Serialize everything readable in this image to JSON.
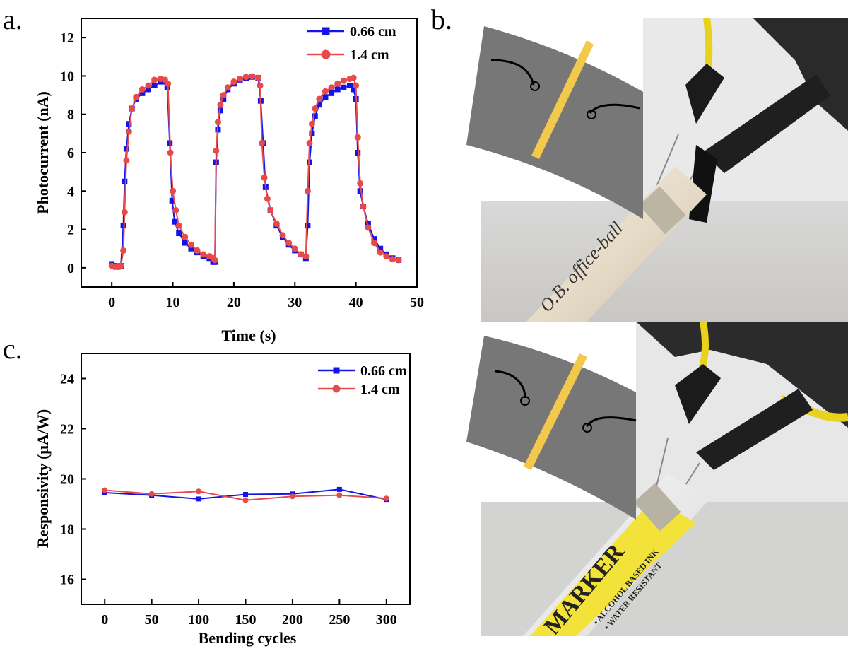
{
  "panel_labels": {
    "a": "a.",
    "b": "b.",
    "c": "c."
  },
  "colors": {
    "blue": "#1414e6",
    "red": "#e84a4a",
    "film": "#777777",
    "electrode": "#f2c94c"
  },
  "chart_data": [
    {
      "type": "line",
      "panel": "a",
      "xlabel": "Time (s)",
      "ylabel": "Photocurrent (nA)",
      "xlim": [
        -5,
        50
      ],
      "ylim": [
        -1,
        13
      ],
      "xticks": [
        0,
        10,
        20,
        30,
        40,
        50
      ],
      "yticks": [
        0,
        2,
        4,
        6,
        8,
        10,
        12
      ],
      "legend_position": "top-right",
      "series": [
        {
          "name": "0.66 cm",
          "color": "#1414e6",
          "marker": "square",
          "x": [
            0,
            0.5,
            1,
            1.5,
            1.9,
            2.1,
            2.4,
            2.8,
            3.3,
            4,
            5,
            6,
            7,
            8,
            8.7,
            9.1,
            9.5,
            9.9,
            10.3,
            11,
            12,
            13,
            14,
            15,
            16,
            16.6,
            16.9,
            17.1,
            17.4,
            17.8,
            18.3,
            19,
            20,
            21,
            22,
            23,
            24,
            24.4,
            24.8,
            25.2,
            26,
            27,
            28,
            29,
            30,
            31,
            31.8,
            32.1,
            32.4,
            32.8,
            33.3,
            34,
            35,
            36,
            37,
            38,
            39,
            39.6,
            40,
            40.3,
            40.7,
            41.2,
            42,
            43,
            44,
            45,
            46,
            47
          ],
          "y": [
            0.2,
            0.1,
            0.05,
            0.1,
            2.2,
            4.5,
            6.2,
            7.5,
            8.3,
            8.8,
            9.1,
            9.3,
            9.5,
            9.7,
            9.7,
            9.4,
            6.5,
            3.5,
            2.4,
            1.8,
            1.3,
            1.0,
            0.8,
            0.6,
            0.5,
            0.3,
            0.3,
            5.5,
            7.2,
            8.2,
            8.8,
            9.3,
            9.6,
            9.8,
            9.9,
            9.95,
            9.9,
            8.7,
            6.5,
            4.2,
            3.0,
            2.2,
            1.6,
            1.2,
            0.9,
            0.7,
            0.5,
            2.2,
            5.5,
            7.0,
            7.9,
            8.5,
            8.9,
            9.1,
            9.3,
            9.4,
            9.5,
            9.3,
            8.8,
            6.0,
            4.0,
            3.2,
            2.3,
            1.5,
            1.0,
            0.7,
            0.5,
            0.4
          ]
        },
        {
          "name": "1.4 cm",
          "color": "#e84a4a",
          "marker": "circle",
          "x": [
            0,
            0.5,
            1,
            1.5,
            1.9,
            2.1,
            2.4,
            2.8,
            3.3,
            4,
            5,
            6,
            7,
            8,
            8.7,
            9.2,
            9.6,
            10,
            10.5,
            11,
            12,
            13,
            14,
            15,
            16,
            16.6,
            16.9,
            17.1,
            17.4,
            17.8,
            18.3,
            19,
            20,
            21,
            22,
            23,
            24,
            24.3,
            24.6,
            25,
            25.5,
            26,
            27,
            28,
            29,
            30,
            31,
            31.8,
            32.1,
            32.4,
            32.8,
            33.3,
            34,
            35,
            36,
            37,
            38,
            39,
            39.6,
            40,
            40.3,
            40.7,
            41.2,
            42,
            43,
            44,
            45,
            46,
            47
          ],
          "y": [
            0.1,
            0.05,
            0.05,
            0.1,
            0.9,
            2.9,
            5.6,
            7.1,
            8.3,
            8.9,
            9.3,
            9.5,
            9.8,
            9.85,
            9.8,
            9.6,
            6.0,
            4.0,
            3.0,
            2.2,
            1.6,
            1.2,
            0.9,
            0.7,
            0.6,
            0.5,
            0.4,
            6.1,
            7.6,
            8.5,
            9.0,
            9.4,
            9.7,
            9.85,
            9.95,
            9.98,
            9.9,
            9.5,
            6.5,
            4.7,
            3.6,
            3.0,
            2.3,
            1.7,
            1.3,
            1.0,
            0.7,
            0.6,
            4.0,
            6.5,
            7.5,
            8.3,
            8.8,
            9.2,
            9.4,
            9.6,
            9.75,
            9.85,
            9.9,
            9.5,
            6.8,
            4.4,
            3.2,
            2.1,
            1.3,
            0.8,
            0.6,
            0.45,
            0.4
          ]
        }
      ]
    },
    {
      "type": "line",
      "panel": "c",
      "xlabel": "Bending cycles",
      "ylabel": "Responsivity (μA/W)",
      "xlim": [
        -25,
        325
      ],
      "ylim": [
        15,
        25
      ],
      "xticks": [
        0,
        50,
        100,
        150,
        200,
        250,
        300
      ],
      "yticks": [
        16,
        18,
        20,
        22,
        24
      ],
      "legend_position": "top-right",
      "series": [
        {
          "name": "0.66 cm",
          "color": "#1414e6",
          "marker": "square",
          "x": [
            0,
            50,
            100,
            150,
            200,
            250,
            300
          ],
          "y": [
            19.45,
            19.35,
            19.2,
            19.38,
            19.4,
            19.58,
            19.18
          ]
        },
        {
          "name": "1.4 cm",
          "color": "#e84a4a",
          "marker": "circle",
          "x": [
            0,
            50,
            100,
            150,
            200,
            250,
            300
          ],
          "y": [
            19.55,
            19.4,
            19.5,
            19.15,
            19.3,
            19.35,
            19.22
          ]
        }
      ]
    }
  ],
  "photos": [
    {
      "name": "pen",
      "text": "O.B. office-ball"
    },
    {
      "name": "marker",
      "text": "MARKER",
      "text2": "• ALCOHOL BASED INK",
      "text3": "• WATER RESISTANT"
    }
  ]
}
